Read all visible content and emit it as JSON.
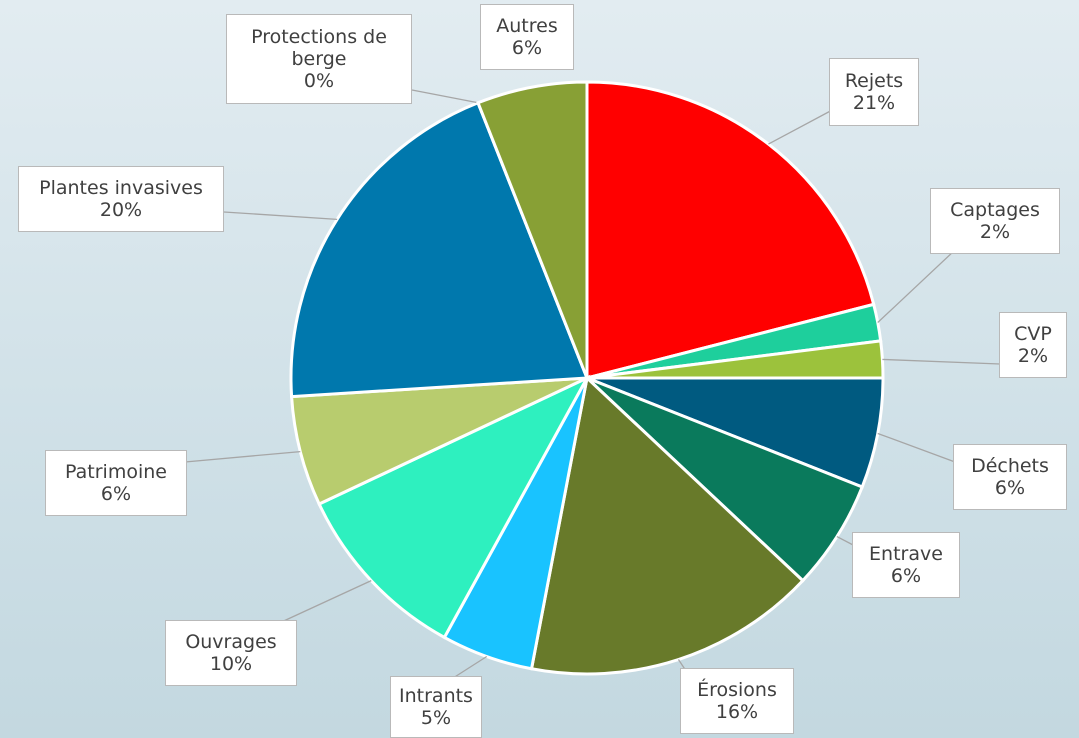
{
  "chart_data": {
    "type": "pie",
    "categories": [
      "Rejets",
      "Captages",
      "CVP",
      "Déchets",
      "Entrave",
      "Érosions",
      "Intrants",
      "Ouvrages",
      "Patrimoine",
      "Plantes invasives",
      "Protections de berge",
      "Autres"
    ],
    "values": [
      21,
      2,
      2,
      6,
      6,
      16,
      5,
      10,
      6,
      20,
      0,
      6
    ],
    "value_labels": [
      "21%",
      "2%",
      "2%",
      "6%",
      "6%",
      "16%",
      "5%",
      "10%",
      "6%",
      "20%",
      "0%",
      "6%"
    ],
    "colors": [
      "#ff0000",
      "#1ecf9c",
      "#9cc23c",
      "#005a80",
      "#0a7a5c",
      "#687a2a",
      "#19c3ff",
      "#2ef0bf",
      "#b8cc6e",
      "#0078ad",
      "#0078ad",
      "#88a035"
    ]
  }
}
